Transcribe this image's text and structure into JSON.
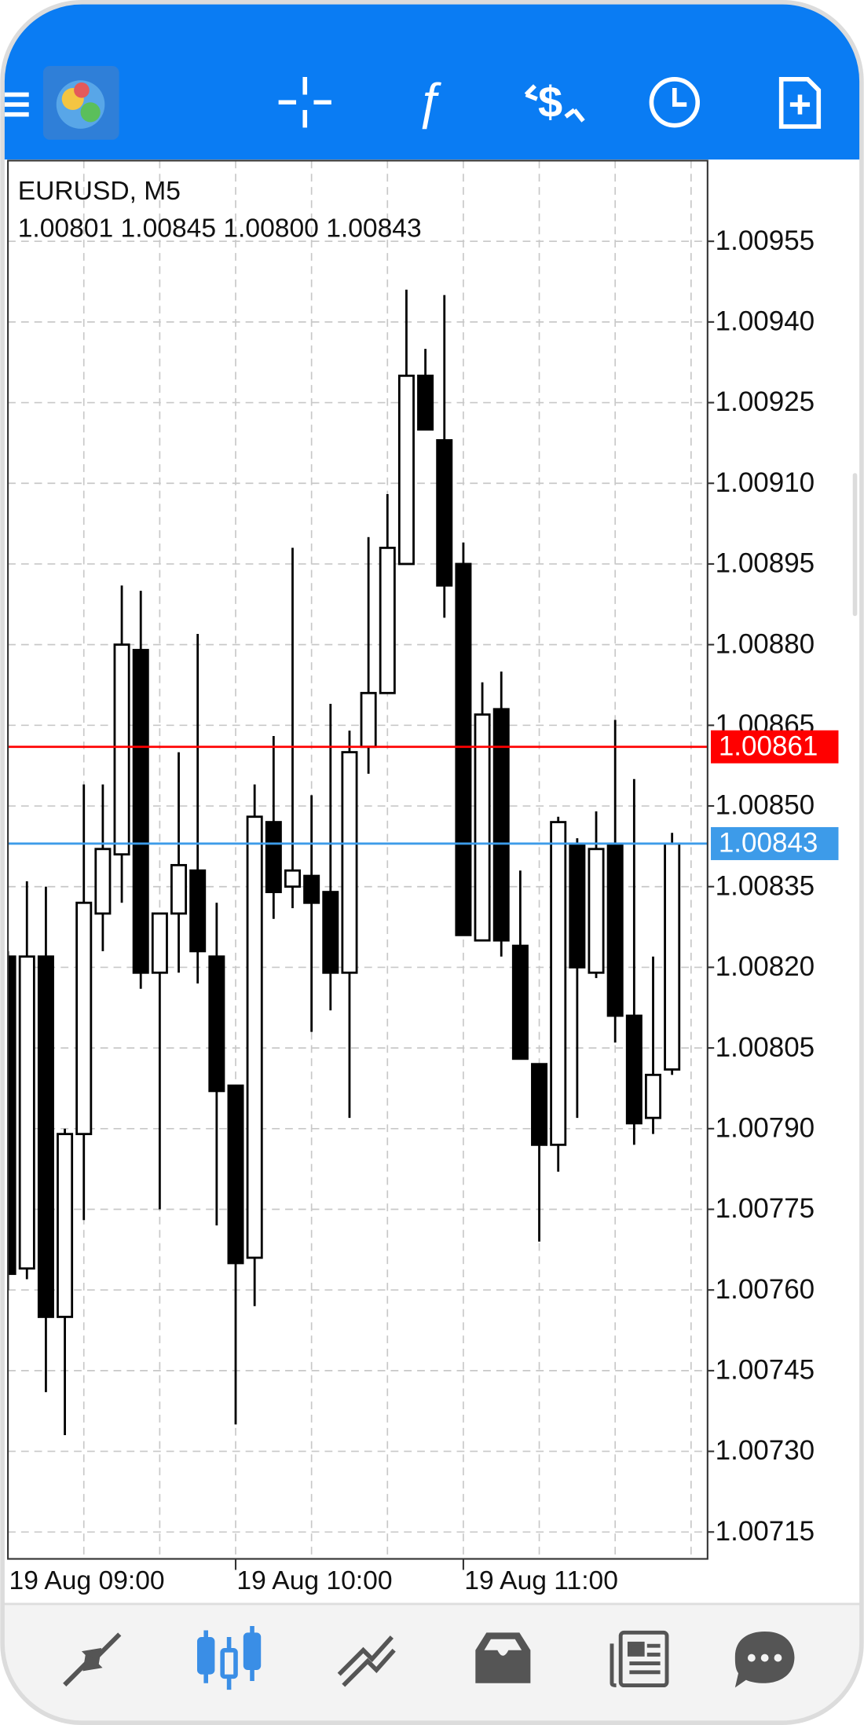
{
  "chart_data": {
    "type": "candlestick",
    "title": "EURUSD, M5",
    "info": "1.00801 1.00845 1.00800 1.00843",
    "categories": [
      "19 Aug 09:00",
      null,
      null,
      null,
      null,
      null,
      null,
      null,
      null,
      null,
      null,
      null,
      "19 Aug 10:00",
      null,
      null,
      null,
      null,
      null,
      null,
      null,
      null,
      null,
      null,
      null,
      "19 Aug 11:00",
      null,
      null,
      null,
      null,
      null,
      null,
      null,
      null,
      null,
      null,
      null
    ],
    "open": [
      1.00822,
      1.00764,
      1.00822,
      1.00755,
      1.00789,
      1.0083,
      1.00841,
      1.00879,
      1.00819,
      1.0083,
      1.00838,
      1.00822,
      1.00798,
      1.00766,
      1.00847,
      1.00835,
      1.00837,
      1.00834,
      1.00819,
      1.00861,
      1.00871,
      1.00895,
      1.0093,
      1.00918,
      1.00895,
      1.00825,
      1.00868,
      1.00824,
      1.00802,
      1.00787,
      1.00843,
      1.00819,
      1.00843,
      1.00811,
      1.00792,
      1.00801
    ],
    "high": [
      1.00823,
      1.00836,
      1.00835,
      1.0079,
      1.00854,
      1.00854,
      1.00891,
      1.0089,
      1.0083,
      1.0086,
      1.00882,
      1.00832,
      1.00798,
      1.00854,
      1.00863,
      1.00898,
      1.00852,
      1.00869,
      1.00864,
      1.009,
      1.00908,
      1.00946,
      1.00935,
      1.00945,
      1.00899,
      1.00873,
      1.00875,
      1.00838,
      1.00802,
      1.00848,
      1.00844,
      1.00849,
      1.00866,
      1.00855,
      1.00822,
      1.00845
    ],
    "low": [
      1.0076,
      1.00762,
      1.00741,
      1.00733,
      1.00773,
      1.00823,
      1.00832,
      1.00816,
      1.00775,
      1.00819,
      1.00817,
      1.00772,
      1.00735,
      1.00757,
      1.00829,
      1.00831,
      1.00808,
      1.00812,
      1.00792,
      1.00856,
      1.00871,
      1.00895,
      1.0092,
      1.00885,
      1.00826,
      1.00825,
      1.00822,
      1.00803,
      1.00769,
      1.00782,
      1.00792,
      1.00818,
      1.00806,
      1.00787,
      1.00789,
      1.008
    ],
    "close": [
      1.00763,
      1.00822,
      1.00755,
      1.00789,
      1.00832,
      1.00842,
      1.0088,
      1.00819,
      1.0083,
      1.00839,
      1.00823,
      1.00797,
      1.00765,
      1.00848,
      1.00834,
      1.00838,
      1.00832,
      1.00819,
      1.0086,
      1.00871,
      1.00898,
      1.0093,
      1.0092,
      1.00891,
      1.00826,
      1.00867,
      1.00825,
      1.00803,
      1.00787,
      1.00847,
      1.0082,
      1.00842,
      1.00811,
      1.00791,
      1.008,
      1.00843
    ],
    "up_color": "#ffffff",
    "down_color": "#000000",
    "ylim": [
      1.0071,
      1.0097
    ],
    "yticks": [
      1.00955,
      {
        "value": 1.0094,
        "label": "1.00940"
      },
      1.00925,
      {
        "value": 1.0091,
        "label": "1.00910"
      },
      1.00895,
      {
        "value": 1.0088,
        "label": "1.00880"
      },
      1.00865,
      {
        "value": 1.0085,
        "label": "1.00850"
      },
      1.00835,
      {
        "value": 1.0082,
        "label": "1.00820"
      },
      1.00805,
      {
        "value": 1.0079,
        "label": "1.00790"
      },
      1.00775,
      {
        "value": 1.0076,
        "label": "1.00760"
      },
      1.00745,
      {
        "value": 1.0073,
        "label": "1.00730"
      },
      1.00715
    ],
    "grid": true,
    "price_lines": [
      {
        "value": 1.00861,
        "color": "#ff0000"
      },
      {
        "value": 1.00843,
        "color": "#3d9be9"
      }
    ]
  }
}
